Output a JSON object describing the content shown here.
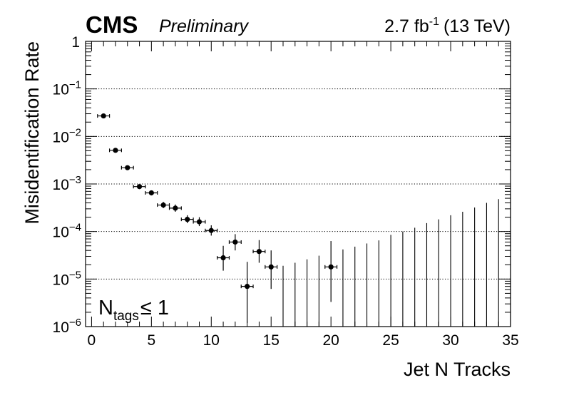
{
  "chart_data": {
    "type": "scatter",
    "experiment": "CMS",
    "status": "Preliminary",
    "luminosity": "2.7 fb",
    "luminosity_exp": "-1",
    "energy": "(13 TeV)",
    "xlabel": "Jet N Tracks",
    "ylabel": "Misidentification Rate",
    "xlim": [
      -0.5,
      35
    ],
    "ylim": [
      1e-06,
      1
    ],
    "yscale": "log",
    "x_ticks": [
      "0",
      "5",
      "10",
      "15",
      "20",
      "25",
      "30",
      "35"
    ],
    "y_ticks": [
      {
        "base": "1",
        "exp": ""
      },
      {
        "base": "10",
        "exp": "−1"
      },
      {
        "base": "10",
        "exp": "−2"
      },
      {
        "base": "10",
        "exp": "−3"
      },
      {
        "base": "10",
        "exp": "−4"
      },
      {
        "base": "10",
        "exp": "−5"
      },
      {
        "base": "10",
        "exp": "−6"
      }
    ],
    "grid": "horizontal dotted",
    "annotation": {
      "main": "N",
      "sub": "tags",
      "rel": "≤ 1"
    },
    "points": [
      {
        "x": 1,
        "y": 0.027,
        "lo": 0.025,
        "hi": 0.029
      },
      {
        "x": 2,
        "y": 0.0051,
        "lo": 0.0047,
        "hi": 0.0055
      },
      {
        "x": 3,
        "y": 0.0022,
        "lo": 0.002,
        "hi": 0.0024
      },
      {
        "x": 4,
        "y": 0.00088,
        "lo": 0.00078,
        "hi": 0.00098
      },
      {
        "x": 5,
        "y": 0.00065,
        "lo": 0.00058,
        "hi": 0.00073
      },
      {
        "x": 6,
        "y": 0.00036,
        "lo": 0.00031,
        "hi": 0.00042
      },
      {
        "x": 7,
        "y": 0.00031,
        "lo": 0.00026,
        "hi": 0.00037
      },
      {
        "x": 8,
        "y": 0.00018,
        "lo": 0.00015,
        "hi": 0.00022
      },
      {
        "x": 9,
        "y": 0.00016,
        "lo": 0.00013,
        "hi": 0.0002
      },
      {
        "x": 10,
        "y": 0.000105,
        "lo": 8.2e-05,
        "hi": 0.000135
      },
      {
        "x": 11,
        "y": 2.8e-05,
        "lo": 1.5e-05,
        "hi": 5e-05
      },
      {
        "x": 12,
        "y": 6e-05,
        "lo": 4e-05,
        "hi": 8.8e-05
      },
      {
        "x": 13,
        "y": 7e-06,
        "lo": 1.2e-06,
        "hi": 2.3e-05
      },
      {
        "x": 14,
        "y": 3.8e-05,
        "lo": 2.2e-05,
        "hi": 6.6e-05
      },
      {
        "x": 15,
        "y": 1.8e-05,
        "lo": 6.2e-06,
        "hi": 4e-05
      },
      {
        "x": 20,
        "y": 1.8e-05,
        "lo": 3.3e-06,
        "hi": 6.3e-05
      }
    ],
    "upper_limits": [
      {
        "x": 16,
        "hi": 1.9e-05
      },
      {
        "x": 17,
        "hi": 2.2e-05
      },
      {
        "x": 18,
        "hi": 2.6e-05
      },
      {
        "x": 19,
        "hi": 3.1e-05
      },
      {
        "x": 21,
        "hi": 4.2e-05
      },
      {
        "x": 22,
        "hi": 4.8e-05
      },
      {
        "x": 23,
        "hi": 5.6e-05
      },
      {
        "x": 24,
        "hi": 6.5e-05
      },
      {
        "x": 25,
        "hi": 8.5e-05
      },
      {
        "x": 26,
        "hi": 0.0001
      },
      {
        "x": 27,
        "hi": 0.00012
      },
      {
        "x": 28,
        "hi": 0.00015
      },
      {
        "x": 29,
        "hi": 0.00018
      },
      {
        "x": 30,
        "hi": 0.00022
      },
      {
        "x": 31,
        "hi": 0.00026
      },
      {
        "x": 32,
        "hi": 0.00032
      },
      {
        "x": 33,
        "hi": 0.0004
      },
      {
        "x": 34,
        "hi": 0.00048
      },
      {
        "x": 35,
        "hi": 0.0006
      }
    ]
  }
}
